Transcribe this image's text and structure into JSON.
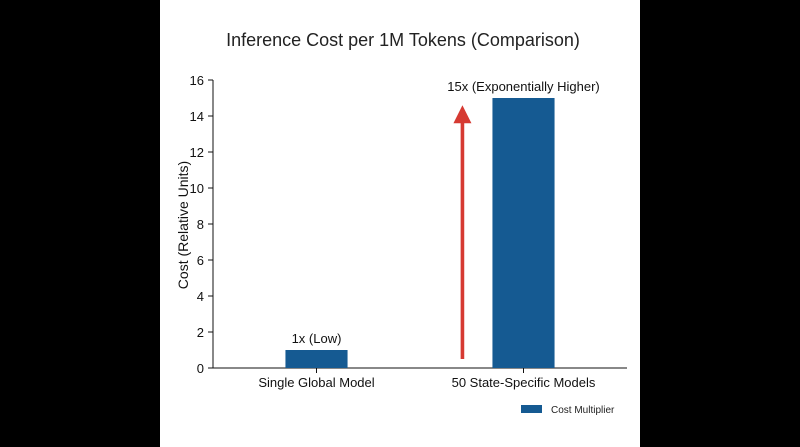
{
  "chart_data": {
    "type": "bar",
    "title": "Inference Cost per 1M Tokens (Comparison)",
    "xlabel": "",
    "ylabel": "Cost (Relative Units)",
    "categories": [
      "Single Global Model",
      "50 State-Specific Models"
    ],
    "series": [
      {
        "name": "Cost Multiplier",
        "values": [
          1,
          15
        ],
        "color": "#155a92"
      }
    ],
    "data_labels": [
      "1x (Low)",
      "15x (Exponentially Higher)"
    ],
    "ylim": [
      0,
      16
    ],
    "yticks": [
      0,
      2,
      4,
      6,
      8,
      10,
      12,
      14,
      16
    ],
    "grid": false,
    "legend": {
      "position": "bottom-right"
    },
    "annotation": {
      "type": "arrow",
      "from_value": 0.5,
      "to_value": 14.6,
      "color": "#d63a32"
    }
  }
}
